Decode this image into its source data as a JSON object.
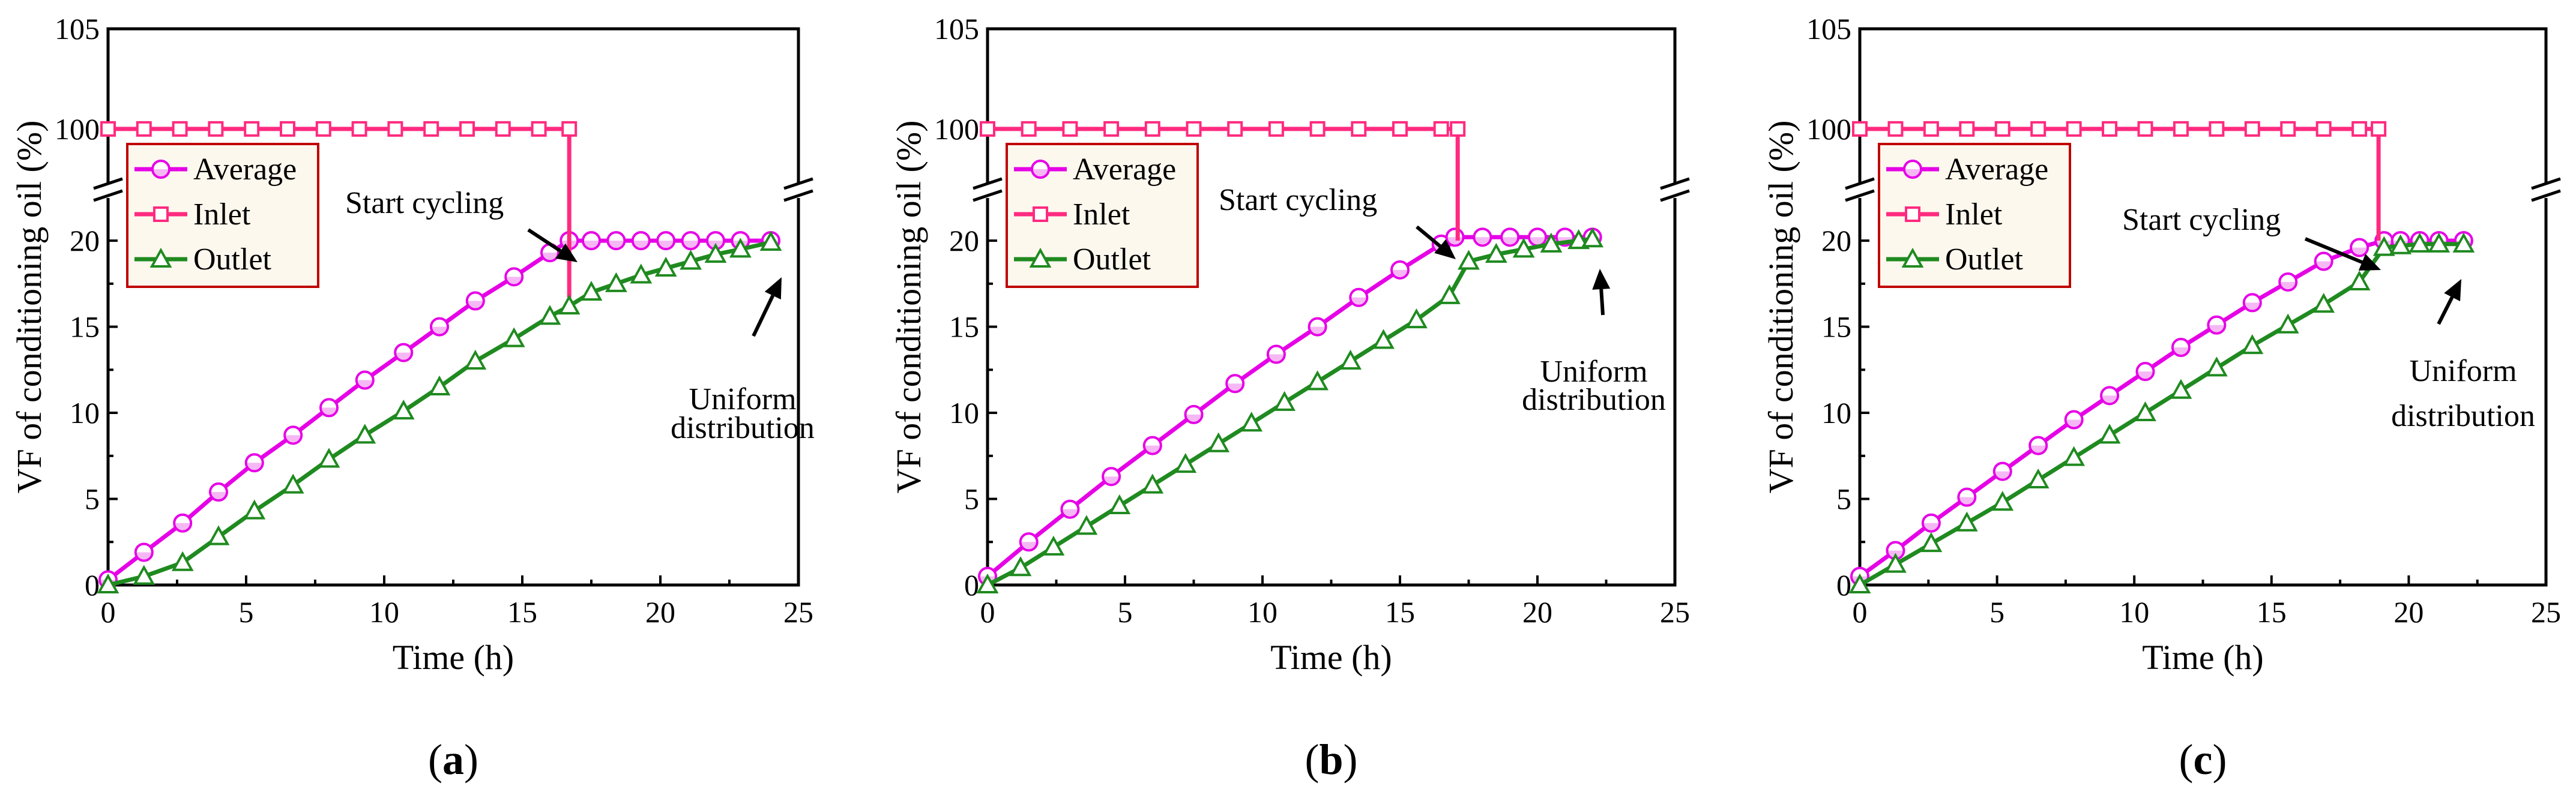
{
  "colors": {
    "average": "#e600e6",
    "inlet": "#ff2a7f",
    "outlet": "#1f8a1f",
    "legend_border": "#c00000",
    "legend_bg": "#fdf8ee"
  },
  "chart_data": [
    {
      "type": "line",
      "caption": "(a)",
      "caption_letter": "a",
      "xlabel": "Time (h)",
      "ylabel": "VF of conditioning oil (%)",
      "xlim": [
        0,
        25
      ],
      "xticks": [
        "0",
        "5",
        "10",
        "15",
        "20",
        "25"
      ],
      "ylim_lower": [
        0,
        23
      ],
      "ylim_upper": [
        97,
        105
      ],
      "yticks_lower": [
        "0",
        "5",
        "10",
        "15",
        "20"
      ],
      "yticks_upper": [
        "100",
        "105"
      ],
      "legend": [
        "Average",
        "Inlet",
        "Outlet"
      ],
      "annotations": {
        "start": "Start cycling",
        "uniform_1": "Uniform",
        "uniform_2": "distribution"
      },
      "series": [
        {
          "name": "Average",
          "marker": "circle",
          "x": [
            0,
            1.3,
            2.7,
            4,
            5.3,
            6.7,
            8,
            9.3,
            10.7,
            12,
            13.3,
            14.7,
            16,
            16.7,
            17.5,
            18.4,
            19.3,
            20.2,
            21.1,
            22,
            22.9,
            24
          ],
          "y": [
            0.3,
            1.9,
            3.6,
            5.4,
            7.1,
            8.7,
            10.3,
            11.9,
            13.5,
            15.0,
            16.5,
            17.9,
            19.3,
            20,
            20,
            20,
            20,
            20,
            20,
            20,
            20,
            20
          ]
        },
        {
          "name": "Inlet",
          "marker": "square",
          "x": [
            0,
            1.3,
            2.6,
            3.9,
            5.2,
            6.5,
            7.8,
            9.1,
            10.4,
            11.7,
            13,
            14.3,
            15.6,
            16.7
          ],
          "y": [
            100,
            100,
            100,
            100,
            100,
            100,
            100,
            100,
            100,
            100,
            100,
            100,
            100,
            100
          ],
          "drop": {
            "x": 16.7,
            "to": 16.7
          }
        },
        {
          "name": "Outlet",
          "marker": "triangle",
          "x": [
            0,
            1.3,
            2.7,
            4,
            5.3,
            6.7,
            8,
            9.3,
            10.7,
            12,
            13.3,
            14.7,
            16,
            16.7,
            17.5,
            18.4,
            19.3,
            20.2,
            21.1,
            22,
            22.9,
            24
          ],
          "y": [
            0,
            0.5,
            1.3,
            2.8,
            4.3,
            5.8,
            7.3,
            8.7,
            10.1,
            11.5,
            13.0,
            14.3,
            15.6,
            16.2,
            17.0,
            17.5,
            18.0,
            18.4,
            18.8,
            19.2,
            19.5,
            19.9
          ]
        }
      ]
    },
    {
      "type": "line",
      "caption": "(b)",
      "caption_letter": "b",
      "xlabel": "Time (h)",
      "ylabel": "VF of conditioning oil (%)",
      "xlim": [
        0,
        25
      ],
      "xticks": [
        "0",
        "5",
        "10",
        "15",
        "20",
        "25"
      ],
      "ylim_lower": [
        0,
        23
      ],
      "ylim_upper": [
        97,
        105
      ],
      "yticks_lower": [
        "0",
        "5",
        "10",
        "15",
        "20"
      ],
      "yticks_upper": [
        "100",
        "105"
      ],
      "legend": [
        "Average",
        "Inlet",
        "Outlet"
      ],
      "annotations": {
        "start": "Start cycling",
        "uniform_1": "Uniform",
        "uniform_2": "distribution"
      },
      "series": [
        {
          "name": "Average",
          "marker": "circle",
          "x": [
            0,
            1.5,
            3,
            4.5,
            6,
            7.5,
            9,
            10.5,
            12,
            13.5,
            15,
            16.5,
            17,
            18,
            19,
            20,
            21,
            22
          ],
          "y": [
            0.5,
            2.5,
            4.4,
            6.3,
            8.1,
            9.9,
            11.7,
            13.4,
            15.0,
            16.7,
            18.3,
            19.8,
            20.2,
            20.2,
            20.2,
            20.2,
            20.2,
            20.2
          ]
        },
        {
          "name": "Inlet",
          "marker": "square",
          "x": [
            0,
            1.5,
            3,
            4.5,
            6,
            7.5,
            9,
            10.5,
            12,
            13.5,
            15,
            16.5,
            17.1
          ],
          "y": [
            100,
            100,
            100,
            100,
            100,
            100,
            100,
            100,
            100,
            100,
            100,
            100,
            100
          ],
          "drop": {
            "x": 17.1,
            "to": 20
          }
        },
        {
          "name": "Outlet",
          "marker": "triangle",
          "x": [
            0,
            1.2,
            2.4,
            3.6,
            4.8,
            6,
            7.2,
            8.4,
            9.6,
            10.8,
            12,
            13.2,
            14.4,
            15.6,
            16.8,
            17.5,
            18.5,
            19.5,
            20.5,
            21.5,
            22
          ],
          "y": [
            0,
            1.0,
            2.2,
            3.4,
            4.6,
            5.8,
            7.0,
            8.2,
            9.4,
            10.6,
            11.8,
            13.0,
            14.2,
            15.4,
            16.8,
            18.8,
            19.2,
            19.5,
            19.8,
            20.0,
            20.1
          ]
        }
      ]
    },
    {
      "type": "line",
      "caption": "(c)",
      "caption_letter": "c",
      "xlabel": "Time (h)",
      "ylabel": "VF of conditioning oil (%)",
      "xlim": [
        0,
        25
      ],
      "xticks": [
        "0",
        "5",
        "10",
        "15",
        "20",
        "25"
      ],
      "ylim_lower": [
        0,
        23
      ],
      "ylim_upper": [
        97,
        105
      ],
      "yticks_lower": [
        "0",
        "5",
        "10",
        "15",
        "20"
      ],
      "yticks_upper": [
        "100",
        "105"
      ],
      "legend": [
        "Average",
        "Inlet",
        "Outlet"
      ],
      "annotations": {
        "start": "Start cycling",
        "uniform_1": "Uniform",
        "uniform_2": "distribution"
      },
      "series": [
        {
          "name": "Average",
          "marker": "circle",
          "x": [
            0,
            1.3,
            2.6,
            3.9,
            5.2,
            6.5,
            7.8,
            9.1,
            10.4,
            11.7,
            13,
            14.3,
            15.6,
            16.9,
            18.2,
            19.1,
            19.7,
            20.4,
            21.1,
            22
          ],
          "y": [
            0.5,
            2.0,
            3.6,
            5.1,
            6.6,
            8.1,
            9.6,
            11.0,
            12.4,
            13.8,
            15.1,
            16.4,
            17.6,
            18.8,
            19.6,
            20,
            20,
            20,
            20,
            20
          ]
        },
        {
          "name": "Inlet",
          "marker": "square",
          "x": [
            0,
            1.3,
            2.6,
            3.9,
            5.2,
            6.5,
            7.8,
            9.1,
            10.4,
            11.7,
            13,
            14.3,
            15.6,
            16.9,
            18.2,
            18.9
          ],
          "y": [
            100,
            100,
            100,
            100,
            100,
            100,
            100,
            100,
            100,
            100,
            100,
            100,
            100,
            100,
            100,
            100
          ],
          "drop": {
            "x": 18.9,
            "to": 20
          }
        },
        {
          "name": "Outlet",
          "marker": "triangle",
          "x": [
            0,
            1.3,
            2.6,
            3.9,
            5.2,
            6.5,
            7.8,
            9.1,
            10.4,
            11.7,
            13,
            14.3,
            15.6,
            16.9,
            18.2,
            19.1,
            19.7,
            20.4,
            21.1,
            22
          ],
          "y": [
            0,
            1.2,
            2.4,
            3.6,
            4.8,
            6.1,
            7.4,
            8.7,
            10.0,
            11.3,
            12.6,
            13.9,
            15.1,
            16.3,
            17.6,
            19.6,
            19.7,
            19.8,
            19.8,
            19.8
          ]
        }
      ]
    }
  ]
}
